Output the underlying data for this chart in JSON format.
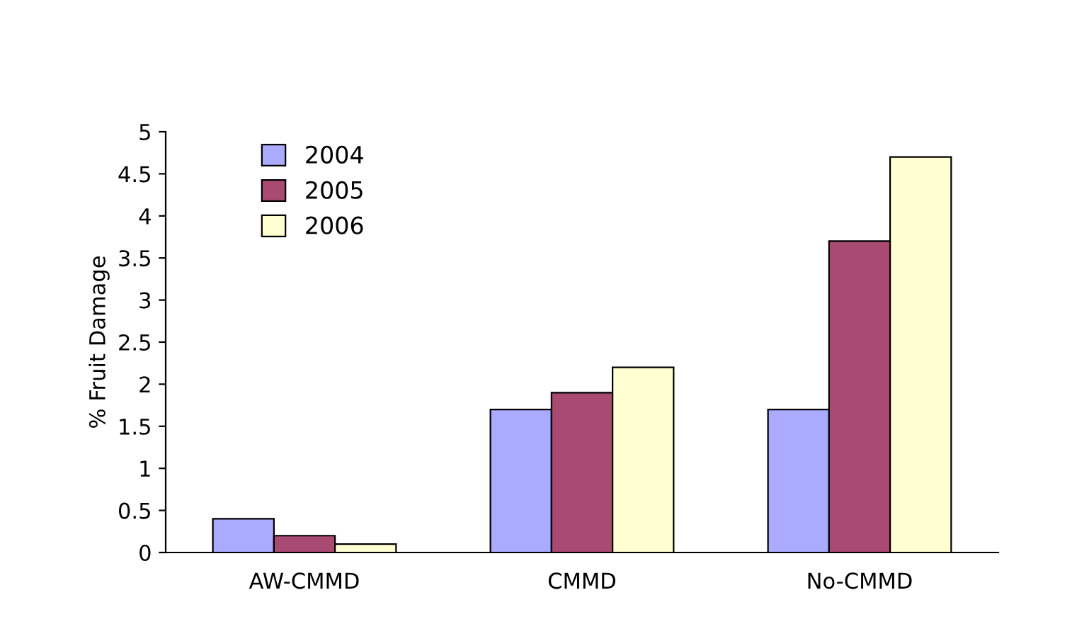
{
  "chart_data": {
    "type": "bar",
    "ylabel": "% Fruit Damage",
    "categories": [
      "AW-CMMD",
      "CMMD",
      "No-CMMD"
    ],
    "series": [
      {
        "name": "2004",
        "color": "#aaaaff",
        "values": [
          0.4,
          1.7,
          1.7
        ]
      },
      {
        "name": "2005",
        "color": "#a84a72",
        "values": [
          0.2,
          1.9,
          3.7
        ]
      },
      {
        "name": "2006",
        "color": "#ffffd2",
        "values": [
          0.1,
          2.2,
          4.7
        ]
      }
    ],
    "ylim": [
      0,
      5
    ],
    "yticks": [
      0,
      0.5,
      1,
      1.5,
      2,
      2.5,
      3,
      3.5,
      4,
      4.5,
      5
    ],
    "grid": false,
    "legend": "top left"
  }
}
